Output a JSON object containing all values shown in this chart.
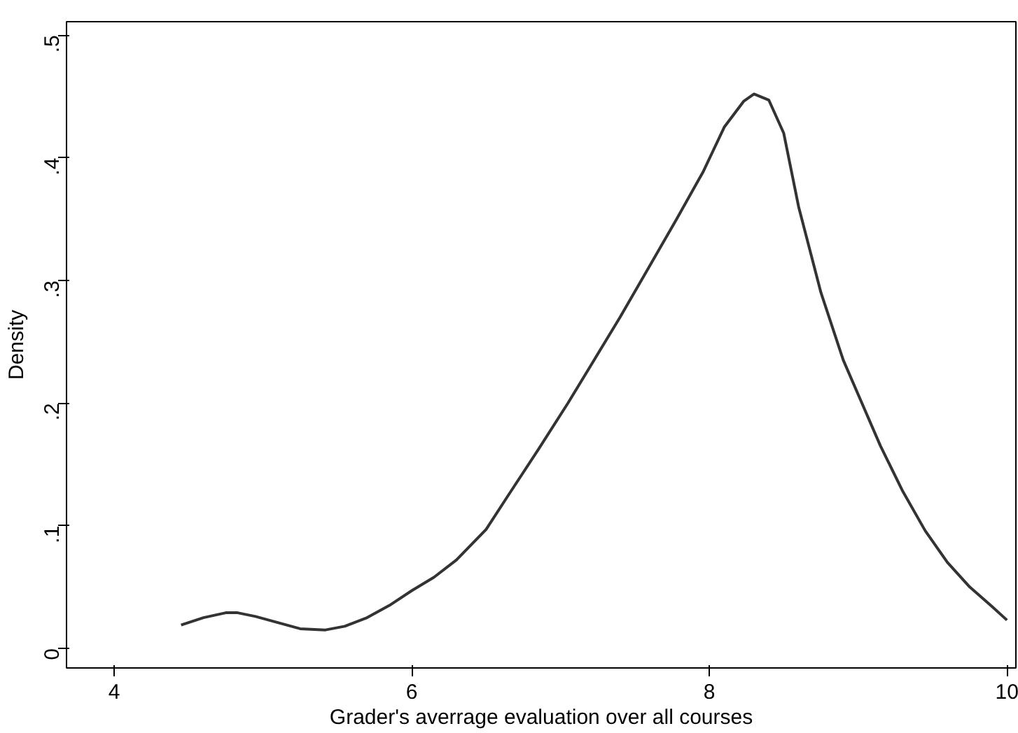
{
  "chart_data": {
    "type": "line",
    "xlabel": "Grader's averrage evaluation over all courses",
    "ylabel": "Density",
    "x": [
      4.45,
      4.6,
      4.75,
      4.83,
      4.95,
      5.1,
      5.25,
      5.42,
      5.55,
      5.7,
      5.85,
      6.0,
      6.15,
      6.3,
      6.5,
      6.65,
      6.85,
      7.05,
      7.22,
      7.4,
      7.59,
      7.78,
      7.96,
      8.1,
      8.23,
      8.3,
      8.4,
      8.5,
      8.6,
      8.75,
      8.9,
      9.0,
      9.15,
      9.3,
      9.45,
      9.6,
      9.75,
      9.9,
      10.0
    ],
    "series": [
      {
        "color": "#333333",
        "values": [
          0.019,
          0.025,
          0.029,
          0.029,
          0.026,
          0.021,
          0.016,
          0.015,
          0.018,
          0.025,
          0.035,
          0.047,
          0.058,
          0.072,
          0.097,
          0.125,
          0.162,
          0.2,
          0.234,
          0.27,
          0.31,
          0.35,
          0.389,
          0.425,
          0.446,
          0.452,
          0.447,
          0.42,
          0.36,
          0.29,
          0.235,
          0.207,
          0.165,
          0.128,
          0.096,
          0.07,
          0.05,
          0.034,
          0.023
        ]
      }
    ],
    "xlim": [
      3.68,
      10.06
    ],
    "ylim": [
      -0.016,
      0.511
    ],
    "xticks": [
      4,
      6,
      8,
      10
    ],
    "yticks": [
      0,
      {
        "value": 0.1,
        "label": ".1"
      },
      {
        "value": 0.2,
        "label": ".2"
      },
      {
        "value": 0.3,
        "label": ".3"
      },
      {
        "value": 0.4,
        "label": ".4"
      },
      {
        "value": 0.5,
        "label": ".5"
      }
    ],
    "grid": false,
    "marker": "none",
    "line_style": "solid"
  }
}
